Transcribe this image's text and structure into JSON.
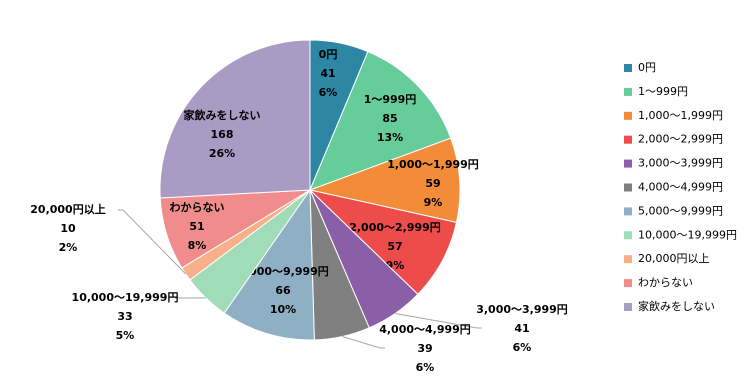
{
  "chart_data": {
    "type": "pie",
    "categories": [
      "0円",
      "1～999円",
      "1,000～1,999円",
      "2,000～2,999円",
      "3,000～3,999円",
      "4,000～4,999円",
      "5,000～9,999円",
      "10,000～19,999円",
      "20,000円以上",
      "わからない",
      "家飲みをしない"
    ],
    "values": [
      41,
      85,
      59,
      57,
      41,
      39,
      66,
      33,
      10,
      51,
      168
    ],
    "percent_labels": [
      "6%",
      "13%",
      "9%",
      "9%",
      "6%",
      "6%",
      "10%",
      "5%",
      "2%",
      "8%",
      "26%"
    ],
    "colors": [
      "#2e86a5",
      "#66cc99",
      "#f28c38",
      "#ee4b4b",
      "#8b5ea8",
      "#808080",
      "#8fb0c4",
      "#9fdcb7",
      "#f9b08a",
      "#f08c8c",
      "#a99bc4"
    ],
    "legend": "right"
  }
}
